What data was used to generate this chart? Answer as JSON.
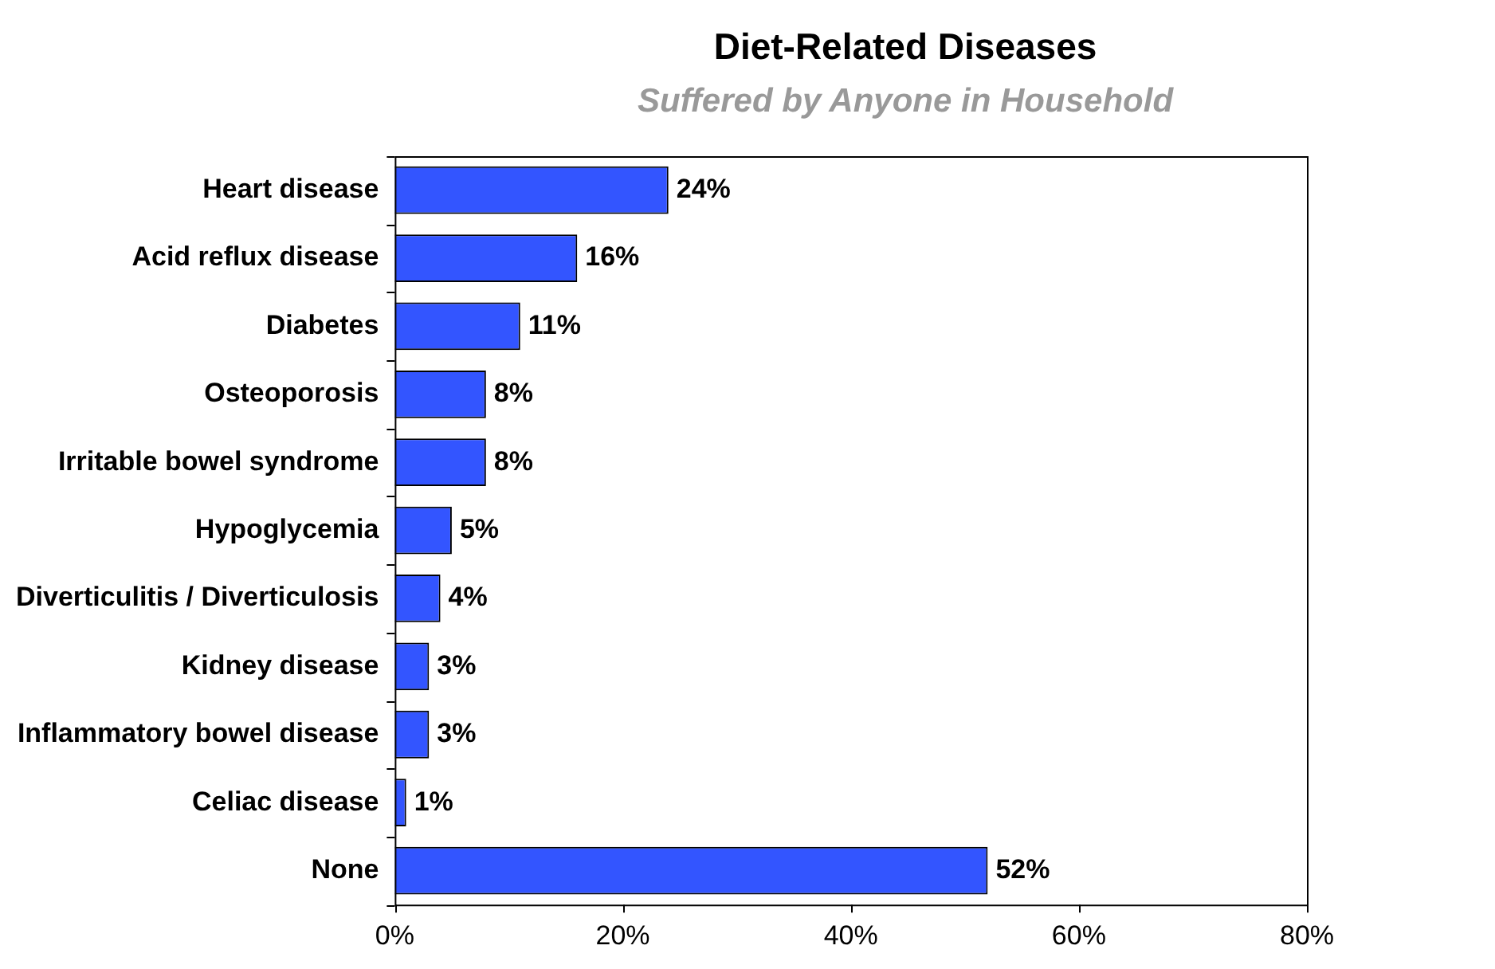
{
  "chart_data": {
    "type": "bar",
    "orientation": "horizontal",
    "title": "Diet-Related Diseases",
    "subtitle": "Suffered by Anyone in Household",
    "categories": [
      "Heart disease",
      "Acid reflux disease",
      "Diabetes",
      "Osteoporosis",
      "Irritable bowel syndrome",
      "Hypoglycemia",
      "Diverticulitis / Diverticulosis",
      "Kidney disease",
      "Inflammatory bowel disease",
      "Celiac disease",
      "None"
    ],
    "values": [
      24,
      16,
      11,
      8,
      8,
      5,
      4,
      3,
      3,
      1,
      52
    ],
    "value_labels": [
      "24%",
      "16%",
      "11%",
      "8%",
      "8%",
      "5%",
      "4%",
      "3%",
      "3%",
      "1%",
      "52%"
    ],
    "color": "#3355ff",
    "xlim": [
      0,
      80
    ],
    "xticks": [
      {
        "value": 0,
        "label": "0%"
      },
      {
        "value": 20,
        "label": "20%"
      },
      {
        "value": 40,
        "label": "40%"
      },
      {
        "value": 60,
        "label": "60%"
      },
      {
        "value": 80,
        "label": "80%"
      }
    ],
    "grid": false,
    "legend": false
  }
}
